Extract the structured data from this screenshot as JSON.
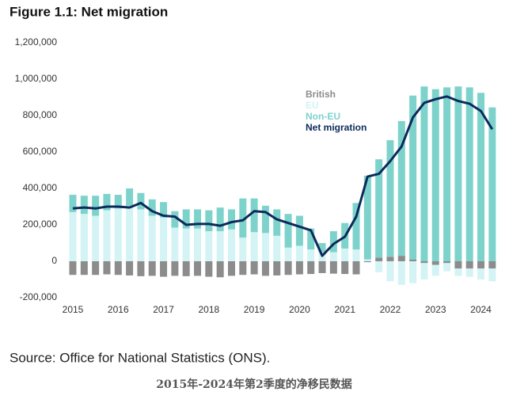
{
  "chart_data": {
    "type": "bar",
    "title": "Figure 1.1: Net migration",
    "source": "Source: Office for National Statistics (ONS).",
    "caption": "2015年-2024年第2季度的净移民数据",
    "categories": [
      "2015",
      null,
      null,
      null,
      "2016",
      null,
      null,
      null,
      "2017",
      null,
      null,
      null,
      "2018",
      null,
      null,
      null,
      "2019",
      null,
      null,
      null,
      "2020",
      null,
      null,
      null,
      "2021",
      null,
      null,
      null,
      "2022",
      null,
      null,
      null,
      "2023",
      null,
      null,
      null,
      "2024",
      null
    ],
    "series": [
      {
        "name": "British",
        "color": "#8c8c8c",
        "values": [
          -75000,
          -75000,
          -75000,
          -72000,
          -75000,
          -78000,
          -82000,
          -80000,
          -85000,
          -80000,
          -82000,
          -80000,
          -85000,
          -88000,
          -80000,
          -75000,
          -72000,
          -80000,
          -78000,
          -75000,
          -72000,
          -70000,
          -65000,
          -68000,
          -70000,
          -72000,
          -5000,
          20000,
          25000,
          30000,
          10000,
          -10000,
          -20000,
          -10000,
          -40000,
          -40000,
          -40000,
          -40000
        ]
      },
      {
        "name": "EU",
        "color": "#d3f3f5",
        "values": [
          270000,
          260000,
          250000,
          280000,
          290000,
          305000,
          285000,
          250000,
          240000,
          185000,
          180000,
          180000,
          165000,
          165000,
          175000,
          130000,
          160000,
          155000,
          140000,
          75000,
          85000,
          65000,
          50000,
          50000,
          70000,
          65000,
          10000,
          -60000,
          -110000,
          -130000,
          -120000,
          -90000,
          -60000,
          -45000,
          -40000,
          -45000,
          -60000,
          -70000
        ]
      },
      {
        "name": "Non-EU",
        "color": "#7dd3cc",
        "values": [
          95000,
          100000,
          110000,
          90000,
          75000,
          95000,
          90000,
          90000,
          85000,
          90000,
          105000,
          105000,
          115000,
          130000,
          110000,
          215000,
          185000,
          150000,
          145000,
          185000,
          165000,
          115000,
          50000,
          115000,
          140000,
          255000,
          460000,
          540000,
          640000,
          740000,
          900000,
          960000,
          945000,
          955000,
          960000,
          955000,
          925000,
          845000
        ]
      },
      {
        "name": "Net migration",
        "type": "line",
        "color": "#0b2a5b",
        "values": [
          290000,
          295000,
          290000,
          300000,
          300000,
          295000,
          320000,
          275000,
          250000,
          245000,
          200000,
          205000,
          205000,
          195000,
          215000,
          225000,
          275000,
          270000,
          230000,
          210000,
          190000,
          170000,
          30000,
          95000,
          135000,
          245000,
          465000,
          480000,
          550000,
          630000,
          790000,
          870000,
          890000,
          905000,
          880000,
          865000,
          825000,
          725000
        ]
      }
    ],
    "ylim": [
      -200000,
      1200000
    ],
    "yticks": [
      {
        "value": -200000,
        "label": "-200,000"
      },
      0,
      {
        "value": 200000,
        "label": "200,000"
      },
      {
        "value": 400000,
        "label": "400,000"
      },
      {
        "value": 600000,
        "label": "600,000"
      },
      {
        "value": 800000,
        "label": "800,000"
      },
      {
        "value": 1000000,
        "label": "1,000,000"
      },
      {
        "value": 1200000,
        "label": "1,200,000"
      }
    ],
    "grid": false
  }
}
